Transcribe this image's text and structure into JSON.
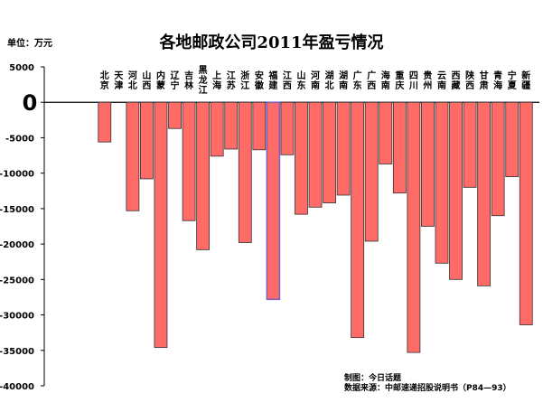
{
  "chart_data": {
    "type": "bar",
    "title": "各地邮政公司2011年盈亏情况",
    "unit": "单位：万元",
    "categories": [
      "北京",
      "天津",
      "河北",
      "山西",
      "内蒙",
      "辽宁",
      "吉林",
      "黑龙江",
      "上海",
      "江苏",
      "浙江",
      "安徽",
      "福建",
      "江西",
      "山东",
      "河南",
      "湖北",
      "湖南",
      "广东",
      "广西",
      "海南",
      "重庆",
      "四川",
      "贵州",
      "云南",
      "西藏",
      "陕西",
      "甘肃",
      "青海",
      "宁夏",
      "新疆"
    ],
    "values": [
      -5600,
      0,
      -15300,
      -10800,
      -34600,
      -3700,
      -16700,
      -20800,
      -7600,
      -6600,
      -19800,
      -6700,
      -27800,
      -7400,
      -15800,
      -14800,
      -14200,
      -13100,
      -33200,
      -19600,
      -8700,
      -12800,
      -35300,
      -17500,
      -22700,
      -25000,
      -12000,
      -25900,
      -16000,
      -10500,
      -31400
    ],
    "highlight_category": "福建",
    "ylim": [
      -40000,
      5000
    ],
    "yticks": [
      "5000",
      "0",
      "-5000",
      "-10000",
      "-15000",
      "-20000",
      "-25000",
      "-30000",
      "-35000",
      "-40000"
    ],
    "colors": {
      "bar": "#ff6b66",
      "highlight": "#7f5fbf",
      "axis": "#000000"
    },
    "footnotes": [
      "制图：今日话题",
      "数据来源：中邮速递招股说明书（P84—93）"
    ]
  }
}
